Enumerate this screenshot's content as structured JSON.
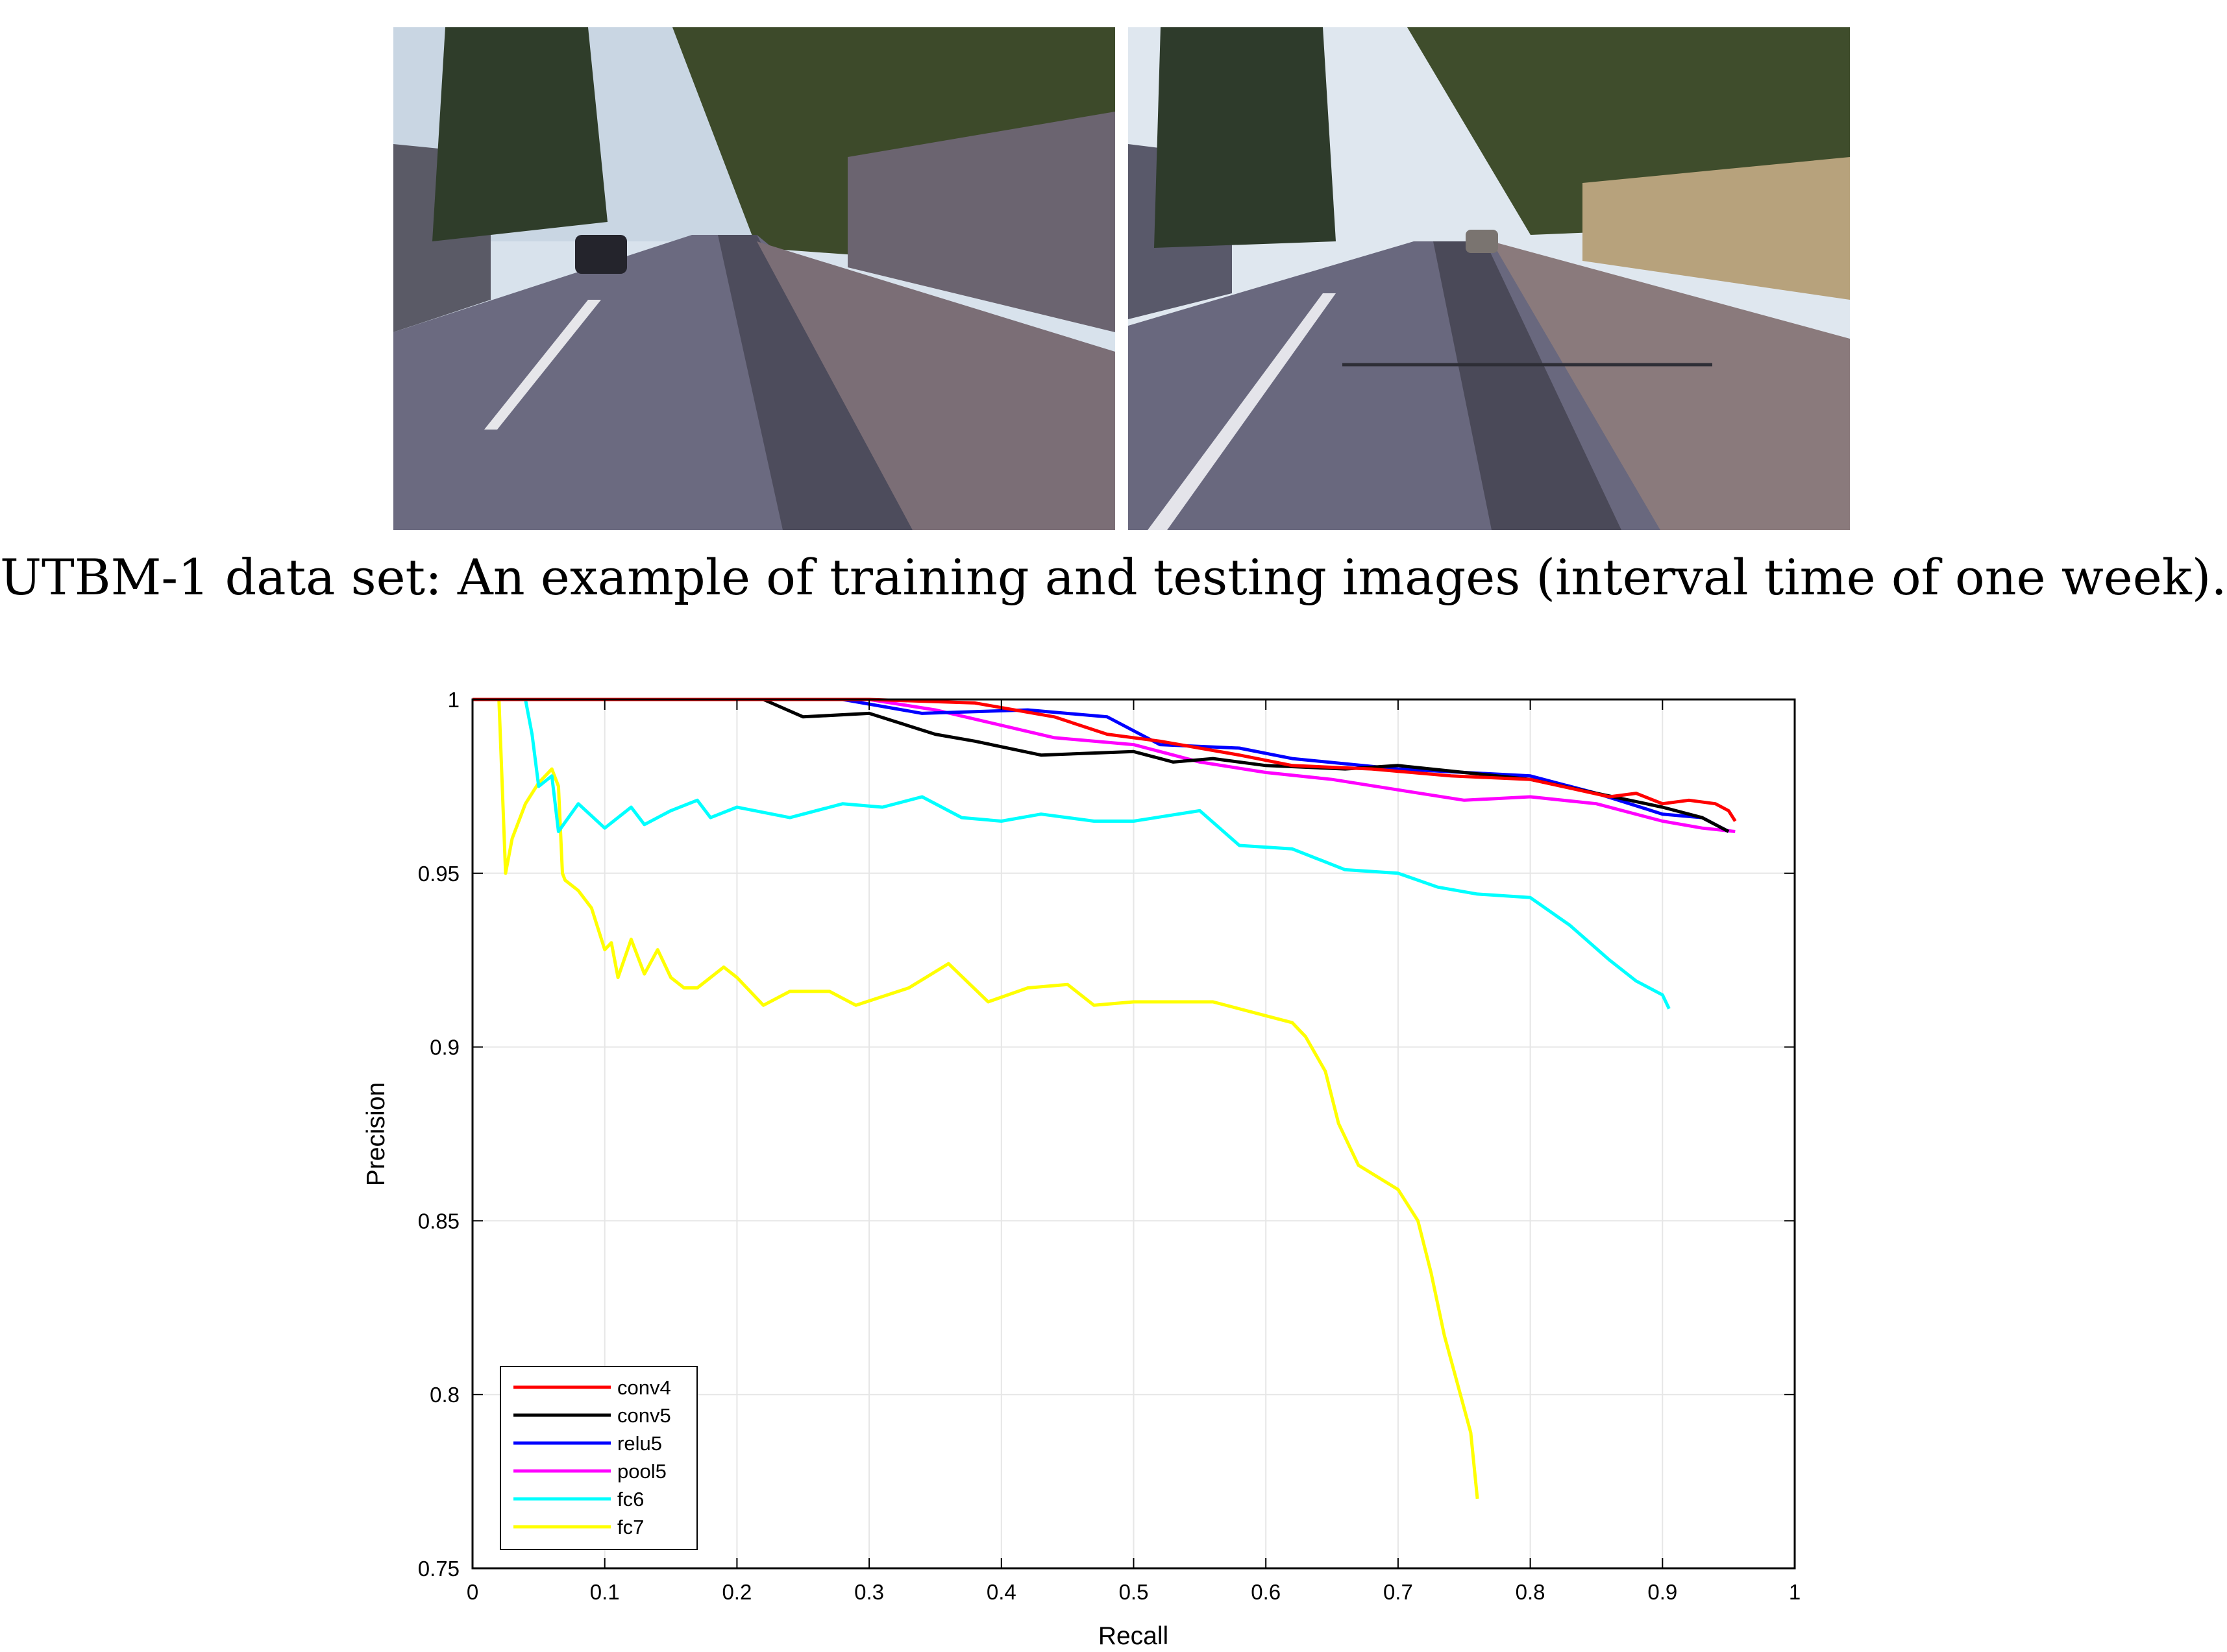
{
  "caption": "UTBM-1 data set: An example of training and testing images (interval time of one week).",
  "photos": [
    {
      "name": "training-image"
    },
    {
      "name": "testing-image"
    }
  ],
  "chart_data": {
    "type": "line",
    "title": "",
    "xlabel": "Recall",
    "ylabel": "Precision",
    "xlim": [
      0,
      1
    ],
    "ylim": [
      0.75,
      1
    ],
    "xticks": [
      0,
      0.1,
      0.2,
      0.3,
      0.4,
      0.5,
      0.6,
      0.7,
      0.8,
      0.9,
      1
    ],
    "yticks": [
      0.75,
      0.8,
      0.85,
      0.9,
      0.95,
      1
    ],
    "xtick_labels": [
      "0",
      "0.1",
      "0.2",
      "0.3",
      "0.4",
      "0.5",
      "0.6",
      "0.7",
      "0.8",
      "0.9",
      "1"
    ],
    "ytick_labels": [
      "0.75",
      "0.8",
      "0.85",
      "0.9",
      "0.95",
      "1"
    ],
    "grid": true,
    "legend_position": "bottom-left",
    "series": [
      {
        "name": "conv4",
        "color": "#ff0000",
        "x": [
          0,
          0.3,
          0.38,
          0.44,
          0.48,
          0.52,
          0.58,
          0.62,
          0.68,
          0.74,
          0.8,
          0.86,
          0.88,
          0.9,
          0.92,
          0.94,
          0.95,
          0.955
        ],
        "y": [
          1,
          1,
          0.999,
          0.995,
          0.99,
          0.988,
          0.984,
          0.981,
          0.98,
          0.978,
          0.977,
          0.972,
          0.973,
          0.97,
          0.971,
          0.97,
          0.968,
          0.965
        ]
      },
      {
        "name": "conv5",
        "color": "#000000",
        "x": [
          0,
          0.22,
          0.25,
          0.3,
          0.35,
          0.38,
          0.43,
          0.5,
          0.53,
          0.56,
          0.6,
          0.66,
          0.7,
          0.75,
          0.8,
          0.85,
          0.9,
          0.93,
          0.95
        ],
        "y": [
          1,
          1,
          0.995,
          0.996,
          0.99,
          0.988,
          0.984,
          0.985,
          0.982,
          0.983,
          0.981,
          0.98,
          0.981,
          0.979,
          0.977,
          0.973,
          0.969,
          0.966,
          0.962
        ]
      },
      {
        "name": "relu5",
        "color": "#0000ff",
        "x": [
          0,
          0.28,
          0.34,
          0.42,
          0.48,
          0.52,
          0.58,
          0.62,
          0.7,
          0.8,
          0.85,
          0.9,
          0.93,
          0.95
        ],
        "y": [
          1,
          1,
          0.996,
          0.997,
          0.995,
          0.987,
          0.986,
          0.983,
          0.98,
          0.978,
          0.973,
          0.967,
          0.966,
          0.962
        ]
      },
      {
        "name": "pool5",
        "color": "#ff00ff",
        "x": [
          0,
          0.3,
          0.35,
          0.44,
          0.5,
          0.55,
          0.6,
          0.65,
          0.7,
          0.75,
          0.8,
          0.85,
          0.9,
          0.93,
          0.955
        ],
        "y": [
          1,
          1,
          0.997,
          0.989,
          0.987,
          0.982,
          0.979,
          0.977,
          0.974,
          0.971,
          0.972,
          0.97,
          0.965,
          0.963,
          0.962
        ]
      },
      {
        "name": "fc6",
        "color": "#00ffff",
        "x": [
          0,
          0.04,
          0.045,
          0.05,
          0.06,
          0.065,
          0.08,
          0.1,
          0.12,
          0.13,
          0.15,
          0.17,
          0.18,
          0.2,
          0.24,
          0.28,
          0.31,
          0.34,
          0.37,
          0.4,
          0.43,
          0.47,
          0.5,
          0.55,
          0.58,
          0.62,
          0.66,
          0.7,
          0.73,
          0.76,
          0.8,
          0.83,
          0.86,
          0.88,
          0.9,
          0.905
        ],
        "y": [
          1,
          1,
          0.99,
          0.975,
          0.978,
          0.962,
          0.97,
          0.963,
          0.969,
          0.964,
          0.968,
          0.971,
          0.966,
          0.969,
          0.966,
          0.97,
          0.969,
          0.972,
          0.966,
          0.965,
          0.967,
          0.965,
          0.965,
          0.968,
          0.958,
          0.957,
          0.951,
          0.95,
          0.946,
          0.944,
          0.943,
          0.935,
          0.925,
          0.919,
          0.915,
          0.911
        ]
      },
      {
        "name": "fc7",
        "color": "#ffff00",
        "x": [
          0,
          0.02,
          0.025,
          0.03,
          0.04,
          0.05,
          0.06,
          0.065,
          0.068,
          0.07,
          0.08,
          0.09,
          0.1,
          0.105,
          0.11,
          0.12,
          0.13,
          0.14,
          0.15,
          0.16,
          0.17,
          0.18,
          0.19,
          0.2,
          0.22,
          0.24,
          0.27,
          0.29,
          0.33,
          0.36,
          0.39,
          0.42,
          0.45,
          0.47,
          0.5,
          0.53,
          0.56,
          0.6,
          0.62,
          0.63,
          0.645,
          0.655,
          0.67,
          0.7,
          0.715,
          0.725,
          0.735,
          0.745,
          0.755,
          0.76
        ],
        "y": [
          1,
          1,
          0.95,
          0.96,
          0.97,
          0.976,
          0.98,
          0.975,
          0.95,
          0.948,
          0.945,
          0.94,
          0.928,
          0.93,
          0.92,
          0.931,
          0.921,
          0.928,
          0.92,
          0.917,
          0.917,
          0.92,
          0.923,
          0.92,
          0.912,
          0.916,
          0.916,
          0.912,
          0.917,
          0.924,
          0.913,
          0.917,
          0.918,
          0.912,
          0.913,
          0.913,
          0.913,
          0.909,
          0.907,
          0.903,
          0.893,
          0.878,
          0.866,
          0.859,
          0.85,
          0.835,
          0.817,
          0.803,
          0.789,
          0.77
        ]
      }
    ]
  }
}
